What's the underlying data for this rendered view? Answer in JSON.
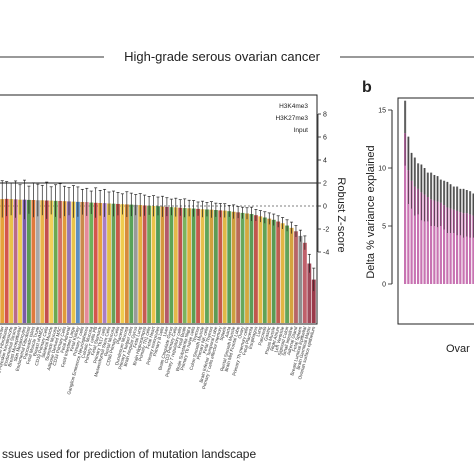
{
  "figure": {
    "title": "High-grade serous ovarian cancer",
    "panel_b_label": "b"
  },
  "chart_data": [
    {
      "type": "bar",
      "panel": "a",
      "xlabel": "ssues used for prediction of mutation landscape",
      "ylabel": "Robust Z-score",
      "ylim": [
        -8,
        8
      ],
      "yticks": [
        8,
        6,
        4,
        2,
        0,
        -2,
        -4
      ],
      "legend": [
        "H3K4me3",
        "H3K27me3",
        "Input"
      ],
      "legend_position": "top-right",
      "reference_lines": [
        2,
        0
      ],
      "categories": [
        "Bone Marrow",
        "Skin Fibroblasts",
        "Penis Foreskin Keratinocyte",
        "Endometrial Stroma",
        "Breast Myoepithelial",
        "Skin Melanocytes",
        "Endometrial Fibroblast",
        "Pancreatic Islets",
        "Fetal Muscle Trunk",
        "Breast vHMEC",
        "CD19 Primary Cells",
        "Skeletal Muscle",
        "Stomach Mucosa",
        "Adipose Derived MSC",
        "CD34 Primary Cells",
        "Fetal Adrenal",
        "Fetal Intestine Large",
        "Fetal Kidney",
        "Primary T cells",
        "Ganglion Eminence Neurospheres",
        "Colonic Mucosa",
        "Primary T cells PB",
        "Fetal Stomach",
        "Primary Th17 cells",
        "Mesenchymal Stem Cells",
        "Rectal Mucosa",
        "CD56 Primary Cells",
        "Placenta",
        "Duodenum Mucosa",
        "Primary T helper cells",
        "Brain Angular Gyrus",
        "Fetal Lung",
        "Brain Hippocampus",
        "Primary Th1 cells",
        "Fetal Heart",
        "Primary monocytes",
        "Primary B cells",
        "Liver",
        "Brain Cingulate Gyrus",
        "CD3 Primary Cells",
        "Primary T regulatory cells",
        "Fetal Brain",
        "Brain Substantia Nigra",
        "Primary Th naive cells",
        "Thymus",
        "Colon Smooth Muscle",
        "Primary NK cells",
        "Fetal Thymus",
        "Brain Inferior Temporal Lobe",
        "Primary T cells effector memory",
        "Spleen",
        "Aorta",
        "Rectal Smooth Muscle",
        "Brain Mid Frontal Lobe",
        "Ovary",
        "Primary Th memory cells",
        "Fetal Placenta",
        "Esophagus",
        "Lung",
        "Pancreas",
        "Gastric",
        "Psoas Muscle",
        "Right Atrium",
        "Left Ventricle",
        "Sigmoid Colon",
        "Small Intestine",
        "Adrenal Gland",
        "Fetal Spleen",
        "Breast Luminal Epithelial",
        "Brain Germinal Matrix",
        "Ovarian surface epithelium"
      ],
      "categories_visible_labels": [
        "Bone Marrow",
        "Skin Fibroblasts",
        "Endometrial Stroma",
        "Endometrial Fibroblast",
        "Pancreatic Islets",
        "CD19 Primary Cells",
        "Breast Myoepithelial",
        "Adipose Derived MSC",
        "CD34 Primary Cells",
        "Primary T cells",
        "Ganglion Eminence",
        "Primary Th17 cells",
        "Fetal Lung",
        "Brain Angular Gyrus",
        "Primary Th1 cells",
        "Primary monocytes",
        "Brain Substantia Nigra",
        "Primary Th naive cells",
        "Primary T cells effector memory",
        "Ovarian surface epithelium"
      ],
      "values": [
        0.6,
        0.62,
        0.6,
        0.58,
        0.55,
        0.55,
        0.53,
        0.52,
        0.5,
        0.5,
        0.48,
        0.47,
        0.45,
        0.44,
        0.42,
        0.4,
        0.38,
        0.36,
        0.35,
        0.34,
        0.3,
        0.28,
        0.26,
        0.25,
        0.22,
        0.2,
        0.18,
        0.16,
        0.14,
        0.12,
        0.1,
        0.08,
        0.05,
        0.03,
        0.0,
        -0.02,
        -0.05,
        -0.08,
        -0.1,
        -0.12,
        -0.15,
        -0.18,
        -0.2,
        -0.22,
        -0.25,
        -0.28,
        -0.3,
        -0.32,
        -0.35,
        -0.38,
        -0.4,
        -0.45,
        -0.5,
        -0.55,
        -0.6,
        -0.65,
        -0.7,
        -0.8,
        -0.9,
        -1.0,
        -1.1,
        -1.2,
        -1.35,
        -1.5,
        -1.7,
        -1.9,
        -2.2,
        -2.6,
        -3.2,
        -5.0,
        -6.4
      ],
      "errors": [
        1.6,
        1.5,
        1.4,
        1.6,
        1.3,
        1.7,
        1.2,
        1.5,
        1.4,
        1.3,
        1.6,
        1.2,
        1.4,
        1.5,
        1.3,
        1.2,
        1.4,
        1.3,
        1.1,
        1.2,
        1.0,
        1.3,
        1.1,
        1.2,
        1.0,
        1.1,
        1.0,
        0.9,
        1.1,
        1.0,
        0.9,
        1.0,
        0.9,
        0.8,
        0.9,
        0.8,
        0.9,
        0.8,
        0.7,
        0.8,
        0.7,
        0.8,
        0.7,
        0.7,
        0.6,
        0.7,
        0.6,
        0.7,
        0.6,
        0.6,
        0.6,
        0.5,
        0.6,
        0.5,
        0.5,
        0.5,
        0.6,
        0.5,
        0.5,
        0.5,
        0.5,
        0.5,
        0.5,
        0.5,
        0.5,
        0.5,
        0.5,
        0.5,
        0.6,
        0.8,
        1.0
      ],
      "colors": [
        "#e5a33a",
        "#d4554c",
        "#e8c34a",
        "#b96a8a",
        "#f0cc4e",
        "#7a5aa6",
        "#5b9a53",
        "#e07a3c",
        "#a8a8a8",
        "#e8b54a",
        "#c44e4e",
        "#f2d05a",
        "#6aa851",
        "#d3716a",
        "#e09a3a",
        "#9474b8",
        "#e8c34a",
        "#5b8fc4",
        "#c98b4b",
        "#e58a9a",
        "#6cb25a",
        "#d4554c",
        "#e8a33a",
        "#a97cc4",
        "#e0bf48",
        "#66a058",
        "#c9574a",
        "#f0cc4e",
        "#d78b3c",
        "#5aa358",
        "#9a9a9a",
        "#e4b040",
        "#c65b52",
        "#6fa858",
        "#e8c34a",
        "#4f9c5a",
        "#d49a3c",
        "#b45a6a",
        "#5fa456",
        "#e6b84a",
        "#c05050",
        "#7cb35d",
        "#dfae3e",
        "#5a9e52",
        "#c8584e",
        "#e9c04c",
        "#62a55a",
        "#d0a03e",
        "#5c9b55",
        "#c75a4e",
        "#e0b847",
        "#5aa058",
        "#cd9e3c",
        "#b86a5a",
        "#68a85c",
        "#d5a840",
        "#5d9c56",
        "#c2574d",
        "#e3b845",
        "#60a257",
        "#d39e3d",
        "#5a9a54",
        "#bf5e52",
        "#e2b644",
        "#63a45a",
        "#d4a33f",
        "#b76468",
        "#8f8f8f",
        "#c0606a",
        "#a04a5a",
        "#9a3a4a"
      ]
    },
    {
      "type": "bar",
      "panel": "b",
      "ylabel": "Delta % variance explained",
      "xlabel": "Ovar",
      "ylim": [
        0,
        16
      ],
      "yticks": [
        0,
        5,
        10,
        15
      ],
      "values": [
        13.0,
        9.8,
        8.9,
        8.4,
        8.2,
        7.9,
        7.7,
        7.5,
        7.3,
        7.2,
        7.1,
        7.0,
        6.8,
        6.6,
        6.5,
        6.4,
        6.3,
        6.2,
        6.1,
        6.1,
        6.0,
        5.9,
        5.8,
        5.7,
        5.6
      ],
      "errors": [
        2.8,
        2.9,
        2.4,
        2.5,
        2.2,
        2.4,
        2.3,
        2.1,
        2.3,
        2.2,
        2.2,
        2.0,
        2.1,
        2.2,
        2.1,
        2.0,
        2.1,
        2.0,
        2.1,
        2.0,
        2.0,
        1.9,
        2.0,
        1.9,
        1.9
      ],
      "bar_color": "#c873b2",
      "upper_color": "#888888"
    }
  ]
}
